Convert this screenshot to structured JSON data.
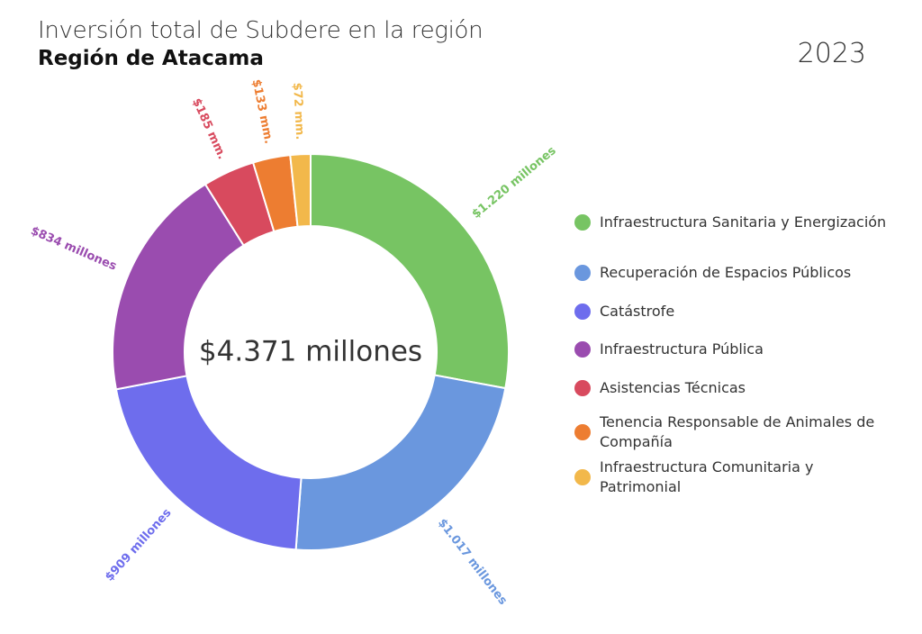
{
  "header": {
    "subtitle": "Inversión total de Subdere en la región",
    "title": "Región de Atacama",
    "year": "2023"
  },
  "chart_data": {
    "type": "pie",
    "donut": true,
    "center_label": "$4.371 millones",
    "categories": [
      "Infraestructura Sanitaria y Energización",
      "Recuperación de Espacios Públicos",
      "Catástrofe",
      "Infraestructura Pública",
      "Asistencias Técnicas",
      "Tenencia Responsable de Animales de Compañía",
      "Infraestructura Comunitaria y Patrimonial"
    ],
    "values": [
      1220,
      1017,
      909,
      834,
      185,
      133,
      72
    ],
    "data_labels": [
      "$1.220 millones",
      "$1.017 millones",
      "$909 millones",
      "$834 millones",
      "$185 mm.",
      "$133 mm.",
      "$72 mm."
    ],
    "colors": [
      "#77c463",
      "#6a97de",
      "#6e6ded",
      "#9a4caf",
      "#d84a5e",
      "#ed7d31",
      "#f2b84b"
    ],
    "legend_position": "right"
  }
}
